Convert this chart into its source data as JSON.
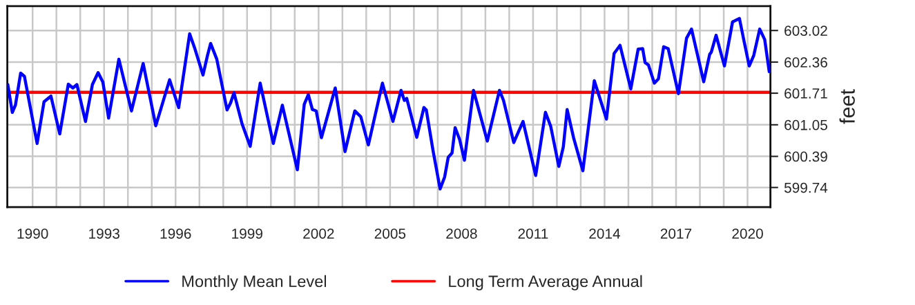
{
  "chart_data": {
    "type": "line",
    "ylabel": "feet",
    "x": [
      1988.96,
      1989.15,
      1989.28,
      1989.5,
      1989.66,
      1990.19,
      1990.48,
      1990.77,
      1991.14,
      1991.5,
      1991.69,
      1991.86,
      1992.22,
      1992.51,
      1992.75,
      1992.95,
      1993.19,
      1993.62,
      1994.15,
      1994.64,
      1995.17,
      1995.75,
      1996.13,
      1996.59,
      1996.81,
      1997.15,
      1997.34,
      1997.47,
      1997.73,
      1998.16,
      1998.31,
      1998.45,
      1998.79,
      1999.13,
      1999.55,
      2000.1,
      2000.48,
      2001.11,
      2001.4,
      2001.57,
      2001.74,
      2001.9,
      2002.12,
      2002.7,
      2003.11,
      2003.52,
      2003.77,
      2004.09,
      2004.68,
      2005.12,
      2005.46,
      2005.6,
      2005.7,
      2006.12,
      2006.42,
      2006.52,
      2006.81,
      2007.1,
      2007.29,
      2007.44,
      2007.6,
      2007.73,
      2007.92,
      2008.12,
      2008.5,
      2009.08,
      2009.59,
      2009.76,
      2010.19,
      2010.58,
      2011.11,
      2011.52,
      2011.74,
      2012.08,
      2012.27,
      2012.43,
      2012.7,
      2013.09,
      2013.57,
      2014.08,
      2014.4,
      2014.65,
      2015.1,
      2015.41,
      2015.6,
      2015.7,
      2015.84,
      2016.09,
      2016.26,
      2016.48,
      2016.67,
      2017.1,
      2017.44,
      2017.65,
      2018.16,
      2018.41,
      2018.48,
      2018.68,
      2019.03,
      2019.37,
      2019.66,
      2019.86,
      2020.07,
      2020.26,
      2020.51,
      2020.72,
      2020.91
    ],
    "series": [
      {
        "name": "Monthly Mean Level",
        "color": "#0000ff",
        "values": [
          601.89,
          601.31,
          601.46,
          602.13,
          602.06,
          600.66,
          601.53,
          601.65,
          600.86,
          601.9,
          601.82,
          601.89,
          601.12,
          601.89,
          602.14,
          601.94,
          601.19,
          602.42,
          601.34,
          602.33,
          601.03,
          601.99,
          601.41,
          602.95,
          602.64,
          602.09,
          602.5,
          602.75,
          602.42,
          601.36,
          601.51,
          601.72,
          601.07,
          600.6,
          601.92,
          600.66,
          601.46,
          600.11,
          601.48,
          601.68,
          601.37,
          601.34,
          600.78,
          601.82,
          600.49,
          601.34,
          601.22,
          600.63,
          601.92,
          601.12,
          601.77,
          601.56,
          601.6,
          600.79,
          601.41,
          601.36,
          600.49,
          599.71,
          599.96,
          600.37,
          600.46,
          600.99,
          600.74,
          600.31,
          601.77,
          600.71,
          601.77,
          601.56,
          600.68,
          601.12,
          599.99,
          601.31,
          601.02,
          600.18,
          600.59,
          601.37,
          600.78,
          600.09,
          601.97,
          601.17,
          602.54,
          602.71,
          601.8,
          602.63,
          602.64,
          602.35,
          602.3,
          601.92,
          602.01,
          602.68,
          602.64,
          601.7,
          602.86,
          603.05,
          601.95,
          602.52,
          602.57,
          602.92,
          602.28,
          603.2,
          603.27,
          602.78,
          602.28,
          602.5,
          603.05,
          602.83,
          602.16
        ]
      }
    ],
    "ref_lines": [
      {
        "axis": "y",
        "value": 601.73,
        "label": "Long Term Average Annual",
        "color": "#ff0000"
      }
    ],
    "xlim": [
      1988.94,
      2020.96
    ],
    "xticks": [
      1990,
      {
        "value": 1991,
        "label": null
      },
      {
        "value": 1992,
        "label": null
      },
      1993,
      {
        "value": 1994,
        "label": null
      },
      {
        "value": 1995,
        "label": null
      },
      1996,
      {
        "value": 1997,
        "label": null
      },
      {
        "value": 1998,
        "label": null
      },
      1999,
      {
        "value": 2000,
        "label": null
      },
      {
        "value": 2001,
        "label": null
      },
      2002,
      {
        "value": 2003,
        "label": null
      },
      {
        "value": 2004,
        "label": null
      },
      2005,
      {
        "value": 2006,
        "label": null
      },
      {
        "value": 2007,
        "label": null
      },
      2008,
      {
        "value": 2009,
        "label": null
      },
      {
        "value": 2010,
        "label": null
      },
      2011,
      {
        "value": 2012,
        "label": null
      },
      {
        "value": 2013,
        "label": null
      },
      2014,
      {
        "value": 2015,
        "label": null
      },
      {
        "value": 2016,
        "label": null
      },
      2017,
      {
        "value": 2018,
        "label": null
      },
      {
        "value": 2019,
        "label": null
      },
      2020
    ],
    "ylim": [
      599.33,
      603.53
    ],
    "yticks": [
      599.74,
      600.39,
      601.05,
      601.71,
      602.36,
      603.02
    ],
    "grid": true,
    "legend": "bottom",
    "marker": "none",
    "line_style": "solid"
  }
}
